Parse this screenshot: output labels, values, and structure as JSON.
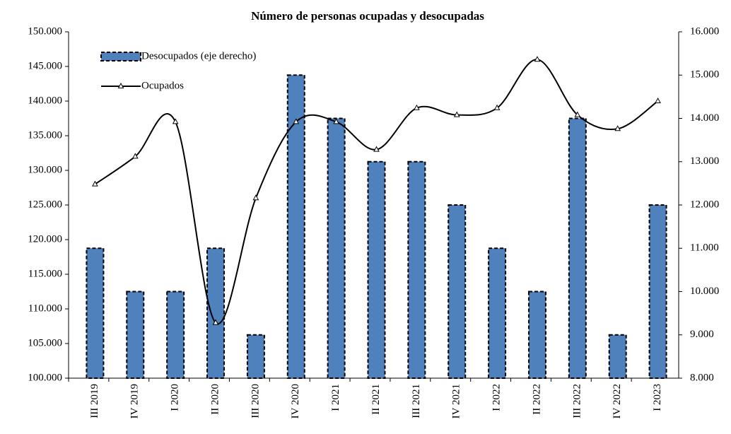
{
  "chart_data": {
    "type": "bar-line",
    "title": "Número de personas ocupadas y desocupadas",
    "categories": [
      "III 2019",
      "IV 2019",
      "I 2020",
      "II 2020",
      "III 2020",
      "IV 2020",
      "I 2021",
      "II 2021",
      "III 2021",
      "IV 2021",
      "I 2022",
      "II 2022",
      "III 2022",
      "IV 2022",
      "I 2023"
    ],
    "series": [
      {
        "name": "Desocupados (eje derecho)",
        "type": "bar",
        "axis": "y2",
        "color": "#4f81bd",
        "values": [
          11000,
          10000,
          10000,
          11000,
          9000,
          15000,
          14000,
          13000,
          13000,
          12000,
          11000,
          10000,
          14000,
          9000,
          12000
        ]
      },
      {
        "name": "Ocupados",
        "type": "line",
        "color": "#000000",
        "values": [
          128000,
          132000,
          137000,
          108000,
          126000,
          137000,
          137000,
          133000,
          139000,
          138000,
          139000,
          146000,
          138000,
          136000,
          140000
        ]
      }
    ],
    "ylim": [
      100000,
      150000
    ],
    "yticks": [
      {
        "value": 100000,
        "label": "100.000"
      },
      {
        "value": 105000,
        "label": "105.000"
      },
      {
        "value": 110000,
        "label": "110.000"
      },
      {
        "value": 115000,
        "label": "115.000"
      },
      {
        "value": 120000,
        "label": "120.000"
      },
      {
        "value": 125000,
        "label": "125.000"
      },
      {
        "value": 130000,
        "label": "130.000"
      },
      {
        "value": 135000,
        "label": "135.000"
      },
      {
        "value": 140000,
        "label": "140.000"
      },
      {
        "value": 145000,
        "label": "145.000"
      },
      {
        "value": 150000,
        "label": "150.000"
      }
    ],
    "y2lim": [
      8000,
      16000
    ],
    "y2ticks": [
      {
        "value": 8000,
        "label": "8.000"
      },
      {
        "value": 9000,
        "label": "9.000"
      },
      {
        "value": 10000,
        "label": "10.000"
      },
      {
        "value": 11000,
        "label": "11.000"
      },
      {
        "value": 12000,
        "label": "12.000"
      },
      {
        "value": 13000,
        "label": "13.000"
      },
      {
        "value": 14000,
        "label": "14.000"
      },
      {
        "value": 15000,
        "label": "15.000"
      },
      {
        "value": 16000,
        "label": "16.000"
      }
    ]
  }
}
